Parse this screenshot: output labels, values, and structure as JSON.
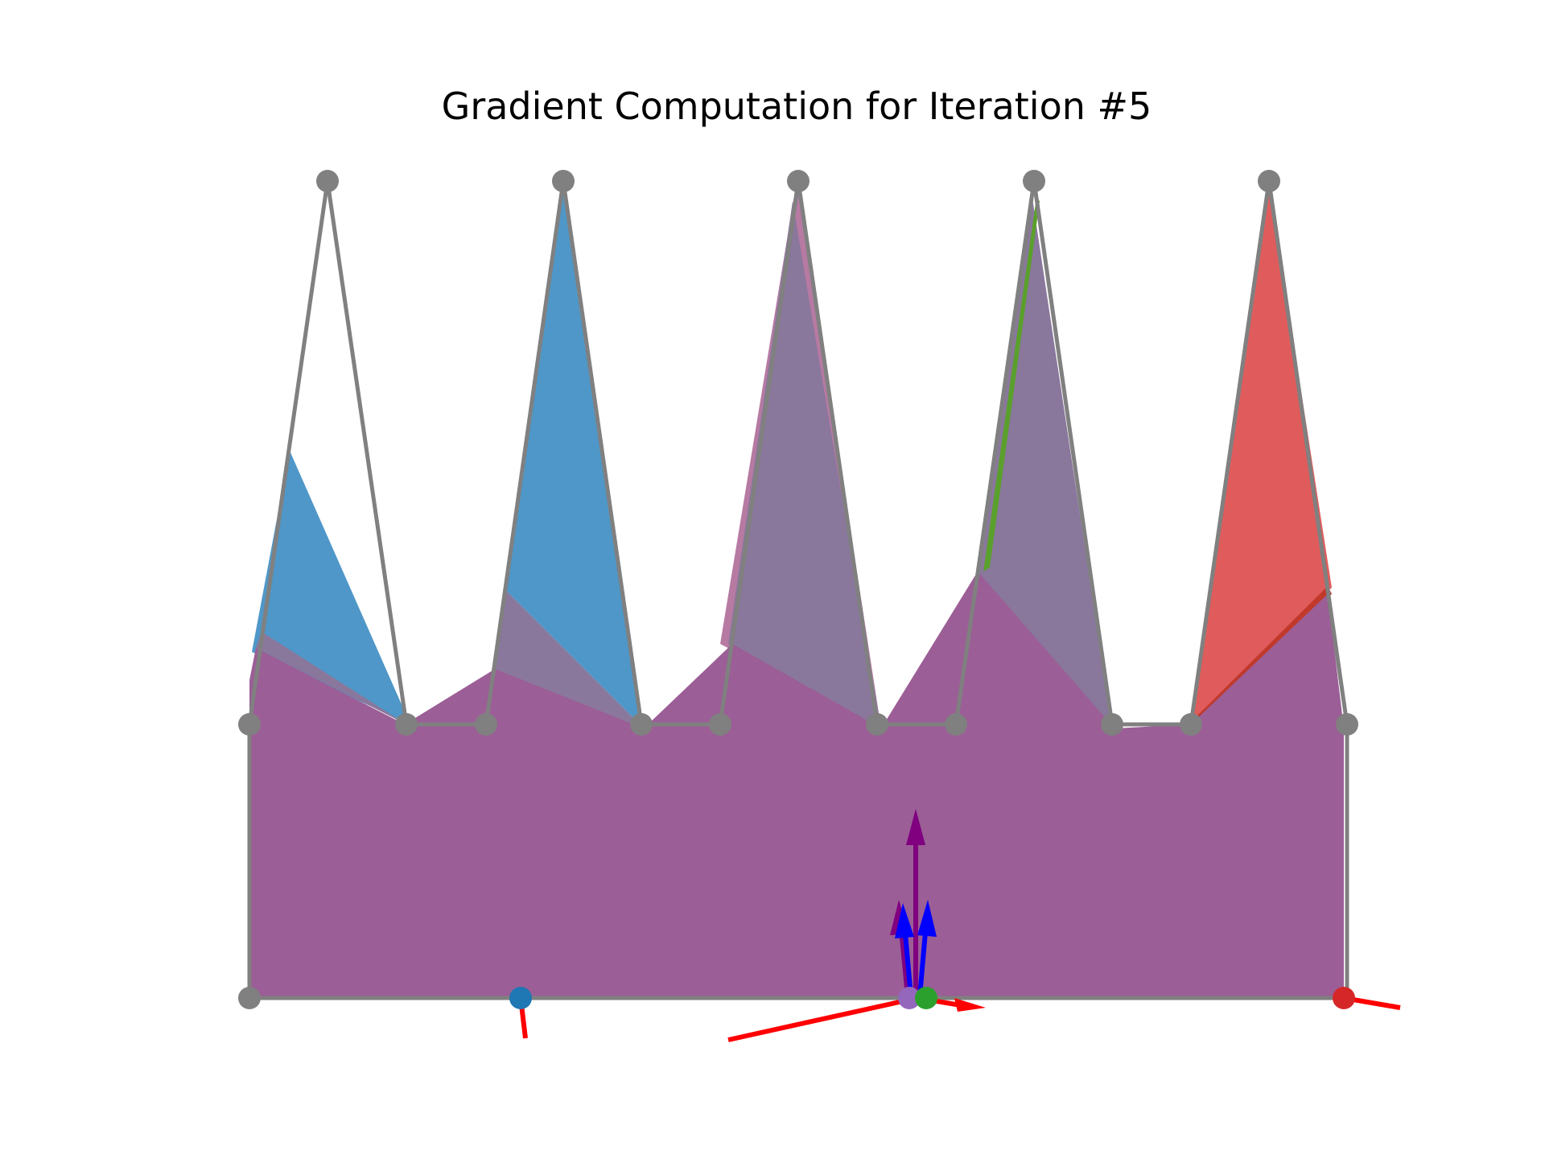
{
  "figure": {
    "title": "Gradient Computation for Iteration #5"
  },
  "colors": {
    "outline": "#808080",
    "vertex": "#808080",
    "blue_region": "#4f97c8",
    "pink_region": "#b67aa3",
    "green_edge": "#5aa02c",
    "red_region": "#e05c5c",
    "red_edge": "#c0392b",
    "purple_fill": "#9b5e96",
    "purple_overlap": "#8a779c",
    "arrow_red": "#ff0000",
    "arrow_blue": "#0000ff",
    "arrow_purple": "#800080",
    "marker_blue": "#1f77b4",
    "marker_green": "#2ca02c",
    "marker_red": "#d62728",
    "marker_purple": "#9467bd"
  },
  "markers": [
    {
      "name": "marker-blue",
      "color_key": "marker_blue"
    },
    {
      "name": "marker-purple",
      "color_key": "marker_purple"
    },
    {
      "name": "marker-green",
      "color_key": "marker_green"
    },
    {
      "name": "marker-red",
      "color_key": "marker_red"
    }
  ]
}
